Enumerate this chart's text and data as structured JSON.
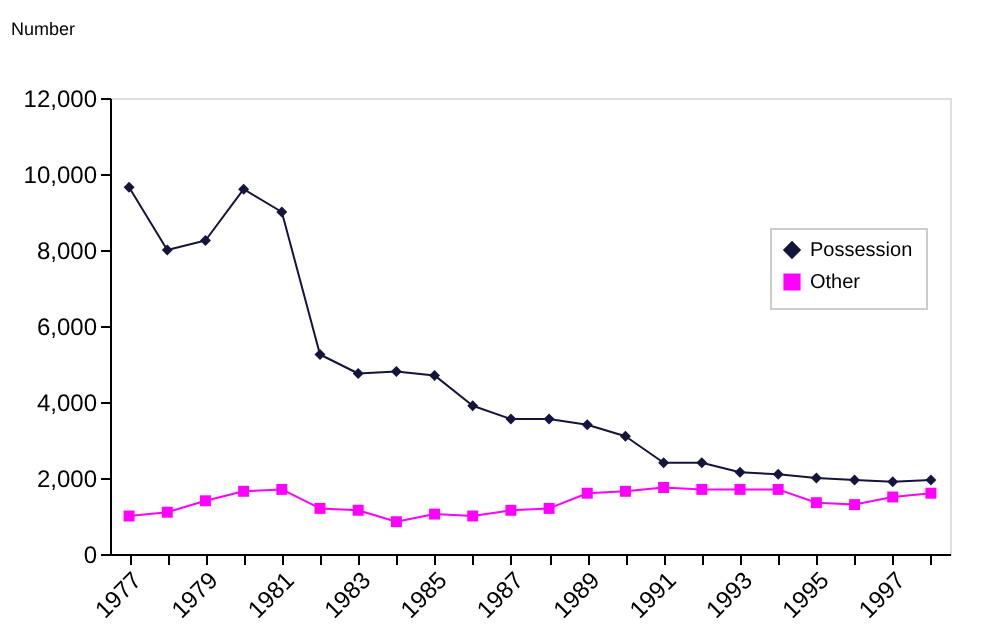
{
  "chart_data": {
    "type": "line",
    "ylabel": "Number",
    "categories": [
      "1977",
      null,
      "1979",
      null,
      "1981",
      null,
      "1983",
      null,
      "1985",
      null,
      "1987",
      null,
      "1989",
      null,
      "1991",
      null,
      "1993",
      null,
      "1995",
      null,
      "1997",
      null
    ],
    "series": [
      {
        "name": "Possession",
        "color": "#14143c",
        "marker": "diamond",
        "values": [
          9650,
          8000,
          8250,
          9600,
          9000,
          5250,
          4750,
          4800,
          4700,
          3900,
          3550,
          3550,
          3400,
          3100,
          2400,
          2400,
          2150,
          2100,
          2000,
          1950,
          1900,
          1950
        ]
      },
      {
        "name": "Other",
        "color": "#ff00ff",
        "marker": "square",
        "values": [
          1000,
          1100,
          1400,
          1650,
          1700,
          1200,
          1150,
          850,
          1050,
          1000,
          1150,
          1200,
          1600,
          1650,
          1750,
          1700,
          1700,
          1700,
          1350,
          1300,
          1500,
          1600
        ]
      }
    ],
    "ylim": [
      0,
      12000
    ],
    "yticks": [
      0,
      {
        "value": 2000,
        "label": "2,000"
      },
      {
        "value": 4000,
        "label": "4,000"
      },
      {
        "value": 6000,
        "label": "6,000"
      },
      {
        "value": 8000,
        "label": "8,000"
      },
      {
        "value": 10000,
        "label": "10,000"
      },
      {
        "value": 12000,
        "label": "12,000"
      }
    ],
    "grid": false,
    "legend": "right"
  }
}
